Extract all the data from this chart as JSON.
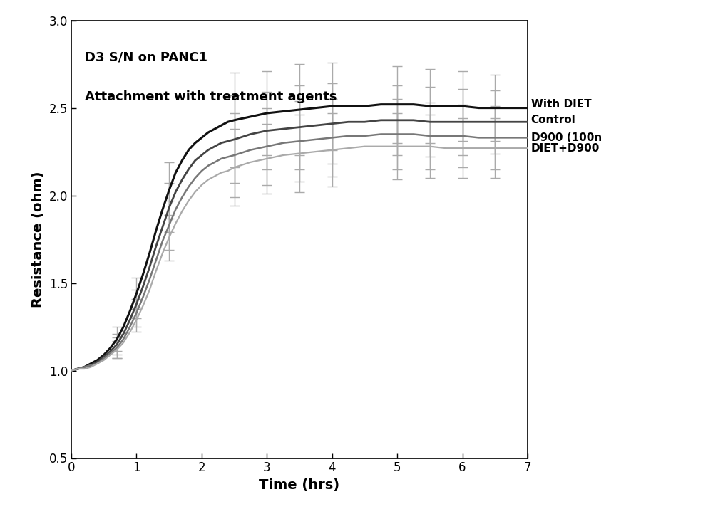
{
  "title_line1": "D3 S/N on PANC1",
  "title_line2": "Attachment with treatment agents",
  "xlabel": "Time (hrs)",
  "ylabel": "Resistance (ohm)",
  "xlim": [
    0,
    7
  ],
  "ylim": [
    0.5,
    3.0
  ],
  "yticks": [
    0.5,
    1.0,
    1.5,
    2.0,
    2.5,
    3.0
  ],
  "xticks": [
    0,
    1,
    2,
    3,
    4,
    5,
    6,
    7
  ],
  "legend_labels": [
    "With DIET",
    "Control",
    "D900 (100n",
    "DIET+D900"
  ],
  "background_color": "#ffffff",
  "series": [
    {
      "name": "With DIET",
      "color": "#111111",
      "linewidth": 2.2,
      "x": [
        0.0,
        0.1,
        0.2,
        0.3,
        0.4,
        0.5,
        0.6,
        0.7,
        0.8,
        0.9,
        1.0,
        1.1,
        1.2,
        1.3,
        1.4,
        1.5,
        1.6,
        1.7,
        1.8,
        1.9,
        2.0,
        2.1,
        2.2,
        2.3,
        2.4,
        2.5,
        2.75,
        3.0,
        3.25,
        3.5,
        3.75,
        4.0,
        4.25,
        4.5,
        4.75,
        5.0,
        5.25,
        5.5,
        5.75,
        6.0,
        6.25,
        6.5,
        6.75,
        7.0
      ],
      "y": [
        1.0,
        1.01,
        1.02,
        1.04,
        1.06,
        1.09,
        1.13,
        1.18,
        1.25,
        1.34,
        1.44,
        1.55,
        1.67,
        1.8,
        1.92,
        2.03,
        2.13,
        2.2,
        2.26,
        2.3,
        2.33,
        2.36,
        2.38,
        2.4,
        2.42,
        2.43,
        2.45,
        2.47,
        2.48,
        2.49,
        2.5,
        2.51,
        2.51,
        2.51,
        2.52,
        2.52,
        2.52,
        2.51,
        2.51,
        2.51,
        2.5,
        2.5,
        2.5,
        2.5
      ],
      "err_x": [
        0.75,
        1.0,
        1.5,
        2.5,
        3.0,
        3.5,
        4.0,
        5.0,
        5.5,
        6.0,
        6.5
      ],
      "err_y": [
        0.07,
        0.09,
        0.16,
        0.27,
        0.24,
        0.26,
        0.25,
        0.22,
        0.21,
        0.2,
        0.19
      ]
    },
    {
      "name": "Control",
      "color": "#444444",
      "linewidth": 2.0,
      "x": [
        0.0,
        0.1,
        0.2,
        0.3,
        0.4,
        0.5,
        0.6,
        0.7,
        0.8,
        0.9,
        1.0,
        1.1,
        1.2,
        1.3,
        1.4,
        1.5,
        1.6,
        1.7,
        1.8,
        1.9,
        2.0,
        2.1,
        2.2,
        2.3,
        2.4,
        2.5,
        2.75,
        3.0,
        3.25,
        3.5,
        3.75,
        4.0,
        4.25,
        4.5,
        4.75,
        5.0,
        5.25,
        5.5,
        5.75,
        6.0,
        6.25,
        6.5,
        6.75,
        7.0
      ],
      "y": [
        1.0,
        1.01,
        1.02,
        1.03,
        1.05,
        1.08,
        1.11,
        1.15,
        1.21,
        1.29,
        1.38,
        1.48,
        1.59,
        1.71,
        1.82,
        1.93,
        2.02,
        2.09,
        2.15,
        2.2,
        2.23,
        2.26,
        2.28,
        2.3,
        2.31,
        2.32,
        2.35,
        2.37,
        2.38,
        2.39,
        2.4,
        2.41,
        2.42,
        2.42,
        2.43,
        2.43,
        2.43,
        2.42,
        2.42,
        2.42,
        2.42,
        2.42,
        2.42,
        2.42
      ],
      "err_x": [
        0.75,
        1.0,
        1.5,
        2.5,
        3.0,
        3.5,
        4.0,
        5.0,
        5.5,
        6.0,
        6.5
      ],
      "err_y": [
        0.06,
        0.08,
        0.14,
        0.25,
        0.22,
        0.24,
        0.23,
        0.2,
        0.2,
        0.19,
        0.18
      ]
    },
    {
      "name": "D900 (100n",
      "color": "#777777",
      "linewidth": 1.8,
      "x": [
        0.0,
        0.1,
        0.2,
        0.3,
        0.4,
        0.5,
        0.6,
        0.7,
        0.8,
        0.9,
        1.0,
        1.1,
        1.2,
        1.3,
        1.4,
        1.5,
        1.6,
        1.7,
        1.8,
        1.9,
        2.0,
        2.1,
        2.2,
        2.3,
        2.4,
        2.5,
        2.75,
        3.0,
        3.25,
        3.5,
        3.75,
        4.0,
        4.25,
        4.5,
        4.75,
        5.0,
        5.25,
        5.5,
        5.75,
        6.0,
        6.25,
        6.5,
        6.75,
        7.0
      ],
      "y": [
        1.0,
        1.01,
        1.02,
        1.03,
        1.04,
        1.07,
        1.1,
        1.13,
        1.18,
        1.25,
        1.33,
        1.42,
        1.52,
        1.63,
        1.74,
        1.83,
        1.92,
        1.99,
        2.05,
        2.1,
        2.14,
        2.17,
        2.19,
        2.21,
        2.22,
        2.23,
        2.26,
        2.28,
        2.3,
        2.31,
        2.32,
        2.33,
        2.34,
        2.34,
        2.35,
        2.35,
        2.35,
        2.34,
        2.34,
        2.34,
        2.33,
        2.33,
        2.33,
        2.33
      ],
      "err_x": [
        0.75,
        1.0,
        1.5,
        2.5,
        3.0,
        3.5,
        4.0,
        5.0,
        5.5,
        6.0,
        6.5
      ],
      "err_y": [
        0.06,
        0.08,
        0.14,
        0.24,
        0.22,
        0.23,
        0.22,
        0.2,
        0.19,
        0.18,
        0.18
      ]
    },
    {
      "name": "DIET+D900",
      "color": "#aaaaaa",
      "linewidth": 1.6,
      "x": [
        0.0,
        0.1,
        0.2,
        0.3,
        0.4,
        0.5,
        0.6,
        0.7,
        0.8,
        0.9,
        1.0,
        1.1,
        1.2,
        1.3,
        1.4,
        1.5,
        1.6,
        1.7,
        1.8,
        1.9,
        2.0,
        2.1,
        2.2,
        2.3,
        2.4,
        2.5,
        2.75,
        3.0,
        3.25,
        3.5,
        3.75,
        4.0,
        4.25,
        4.5,
        4.75,
        5.0,
        5.25,
        5.5,
        5.75,
        6.0,
        6.25,
        6.5,
        6.75,
        7.0
      ],
      "y": [
        1.0,
        1.01,
        1.01,
        1.02,
        1.04,
        1.06,
        1.09,
        1.12,
        1.16,
        1.22,
        1.29,
        1.37,
        1.46,
        1.57,
        1.67,
        1.76,
        1.84,
        1.91,
        1.97,
        2.02,
        2.06,
        2.09,
        2.11,
        2.13,
        2.14,
        2.16,
        2.19,
        2.21,
        2.23,
        2.24,
        2.25,
        2.26,
        2.27,
        2.28,
        2.28,
        2.28,
        2.28,
        2.28,
        2.27,
        2.27,
        2.27,
        2.27,
        2.27,
        2.27
      ],
      "err_x": [
        0.75,
        1.0,
        1.5,
        2.5,
        3.0,
        3.5,
        4.0,
        5.0,
        5.5,
        6.0,
        6.5
      ],
      "err_y": [
        0.05,
        0.07,
        0.13,
        0.22,
        0.2,
        0.22,
        0.21,
        0.19,
        0.18,
        0.17,
        0.17
      ]
    }
  ],
  "errbar_color": "#aaaaaa",
  "errbar_capsize": 5,
  "errbar_linewidth": 1.0
}
